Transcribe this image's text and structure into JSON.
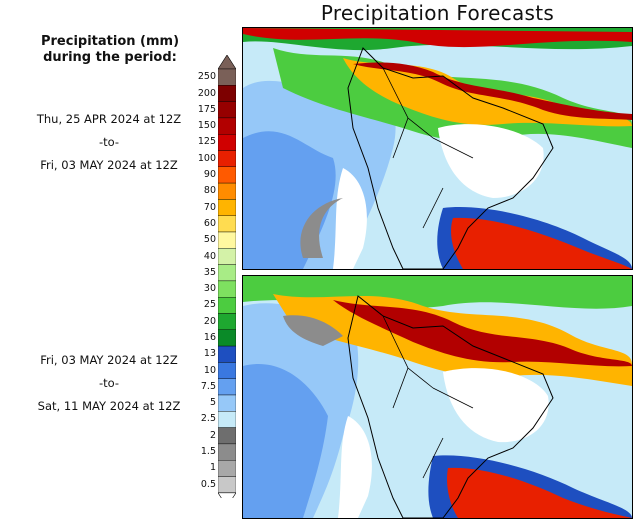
{
  "title": "Precipitation Forecasts",
  "legend": {
    "heading_line1": "Precipitation (mm)",
    "heading_line2": "during the period:",
    "colorbar": [
      {
        "label": "250",
        "color": "#7a6058"
      },
      {
        "label": "200",
        "color": "#7d0000"
      },
      {
        "label": "175",
        "color": "#960000"
      },
      {
        "label": "150",
        "color": "#b20000"
      },
      {
        "label": "125",
        "color": "#d00000"
      },
      {
        "label": "100",
        "color": "#e82000"
      },
      {
        "label": "90",
        "color": "#ff5a00"
      },
      {
        "label": "80",
        "color": "#ff8c00"
      },
      {
        "label": "70",
        "color": "#ffb400"
      },
      {
        "label": "60",
        "color": "#ffdc50"
      },
      {
        "label": "50",
        "color": "#fff8a0"
      },
      {
        "label": "40",
        "color": "#d4f2a8"
      },
      {
        "label": "35",
        "color": "#a8ec86"
      },
      {
        "label": "30",
        "color": "#7ee060"
      },
      {
        "label": "25",
        "color": "#4ccc40"
      },
      {
        "label": "20",
        "color": "#1ea830"
      },
      {
        "label": "16",
        "color": "#0a8a28"
      },
      {
        "label": "13",
        "color": "#1e4fc0"
      },
      {
        "label": "10",
        "color": "#3a78e0"
      },
      {
        "label": "7.5",
        "color": "#64a0f0"
      },
      {
        "label": "5",
        "color": "#96c8f8"
      },
      {
        "label": "2.5",
        "color": "#c6eaf8"
      },
      {
        "label": "2",
        "color": "#6e6e6e"
      },
      {
        "label": "1.5",
        "color": "#8c8c8c"
      },
      {
        "label": "1",
        "color": "#a8a8a8"
      },
      {
        "label": "0.5",
        "color": "#c8c8c8"
      }
    ]
  },
  "periods": [
    {
      "start": "Thu, 25 APR 2024 at 12Z",
      "separator": "-to-",
      "end": "Fri, 03 MAY 2024 at 12Z"
    },
    {
      "start": "Fri, 03 MAY 2024 at 12Z",
      "separator": "-to-",
      "end": "Sat, 11 MAY 2024 at 12Z"
    }
  ]
}
